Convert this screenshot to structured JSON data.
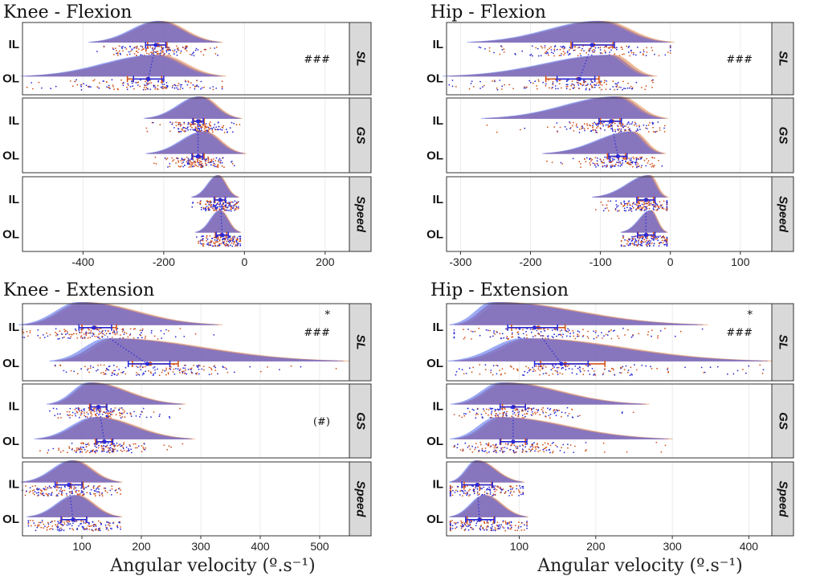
{
  "x_axis_label": "Angular velocity (º.s⁻¹)",
  "colors": {
    "IL_density": "#7a8ef0",
    "OL_density": "#e8a070",
    "overlap": "#7a5aa8",
    "IL_points": "#2b2bd6",
    "OL_points": "#d2531a",
    "strip_fill": "#d9d9d9",
    "grid": "#ebebeb"
  },
  "chart_data": [
    {
      "id": "knee-flexion",
      "title": "Knee - Flexion",
      "type": "raincloud",
      "xlim": [
        -550,
        260
      ],
      "xticks": [
        -400,
        -200,
        0,
        200
      ],
      "xtick_labels": [
        "-400",
        "-200",
        "0",
        "200"
      ],
      "facets": [
        {
          "label": "SL",
          "annotation": [
            "###"
          ],
          "rows": [
            {
              "label": "IL",
              "min": -380,
              "max": -60,
              "peak": -210,
              "mean": -220,
              "ci": [
                -245,
                -195
              ],
              "mean_ol": -215,
              "ci_ol": [
                -240,
                -192
              ]
            },
            {
              "label": "OL",
              "min": -545,
              "max": -55,
              "peak": -215,
              "mean": -238,
              "ci": [
                -275,
                -200
              ],
              "mean_ol": -240,
              "ci_ol": [
                -290,
                -205
              ]
            }
          ]
        },
        {
          "label": "GS",
          "annotation": [],
          "rows": [
            {
              "label": "IL",
              "min": -245,
              "max": -10,
              "peak": -110,
              "mean": -115,
              "ci": [
                -128,
                -102
              ],
              "mean_ol": -112,
              "ci_ol": [
                -126,
                -100
              ]
            },
            {
              "label": "OL",
              "min": -240,
              "max": 0,
              "peak": -100,
              "mean": -115,
              "ci": [
                -130,
                -103
              ],
              "mean_ol": -113,
              "ci_ol": [
                -128,
                -100
              ]
            }
          ]
        },
        {
          "label": "Speed",
          "annotation": [],
          "rows": [
            {
              "label": "IL",
              "min": -130,
              "max": -15,
              "peak": -65,
              "mean": -60,
              "ci": [
                -75,
                -47
              ],
              "mean_ol": -60,
              "ci_ol": [
                -73,
                -48
              ]
            },
            {
              "label": "OL",
              "min": -120,
              "max": -10,
              "peak": -60,
              "mean": -55,
              "ci": [
                -70,
                -40
              ],
              "mean_ol": -57,
              "ci_ol": [
                -72,
                -44
              ]
            }
          ]
        }
      ]
    },
    {
      "id": "hip-flexion",
      "title": "Hip - Flexion",
      "type": "raincloud",
      "xlim": [
        -320,
        145
      ],
      "xticks": [
        -300,
        -200,
        -100,
        0,
        100
      ],
      "xtick_labels": [
        "-300",
        "-200",
        "-100",
        "0",
        "100"
      ],
      "facets": [
        {
          "label": "SL",
          "annotation": [
            "###"
          ],
          "rows": [
            {
              "label": "IL",
              "min": -285,
              "max": 0,
              "peak": -100,
              "mean": -112,
              "ci": [
                -140,
                -80
              ],
              "mean_ol": -110,
              "ci_ol": [
                -142,
                -82
              ]
            },
            {
              "label": "OL",
              "min": -320,
              "max": -25,
              "peak": -85,
              "mean": -130,
              "ci": [
                -162,
                -108
              ],
              "mean_ol": -132,
              "ci_ol": [
                -178,
                -102
              ]
            }
          ]
        },
        {
          "label": "GS",
          "annotation": [],
          "rows": [
            {
              "label": "IL",
              "min": -265,
              "max": -8,
              "peak": -75,
              "mean": -85,
              "ci": [
                -102,
                -70
              ],
              "mean_ol": -83,
              "ci_ol": [
                -100,
                -72
              ]
            },
            {
              "label": "OL",
              "min": -180,
              "max": -10,
              "peak": -55,
              "mean": -75,
              "ci": [
                -88,
                -62
              ],
              "mean_ol": -75,
              "ci_ol": [
                -90,
                -64
              ]
            }
          ]
        },
        {
          "label": "Speed",
          "annotation": [],
          "rows": [
            {
              "label": "IL",
              "min": -110,
              "max": -5,
              "peak": -30,
              "mean": -35,
              "ci": [
                -48,
                -22
              ],
              "mean_ol": -34,
              "ci_ol": [
                -46,
                -24
              ]
            },
            {
              "label": "OL",
              "min": -70,
              "max": -5,
              "peak": -28,
              "mean": -35,
              "ci": [
                -47,
                -22
              ],
              "mean_ol": -34,
              "ci_ol": [
                -46,
                -24
              ]
            }
          ]
        }
      ]
    },
    {
      "id": "knee-extension",
      "title": "Knee - Extension",
      "type": "raincloud",
      "xlim": [
        0,
        550
      ],
      "xticks": [
        100,
        200,
        300,
        400,
        500
      ],
      "xtick_labels": [
        "100",
        "200",
        "300",
        "400",
        "500"
      ],
      "facets": [
        {
          "label": "SL",
          "annotation": [
            "*",
            "###"
          ],
          "rows": [
            {
              "label": "IL",
              "min": 0,
              "max": 330,
              "peak": 100,
              "mean": 120,
              "ci": [
                95,
                150
              ],
              "mean_ol": 122,
              "ci_ol": [
                100,
                158
              ]
            },
            {
              "label": "OL",
              "min": 55,
              "max": 540,
              "peak": 150,
              "mean": 210,
              "ci": [
                178,
                248
              ],
              "mean_ol": 215,
              "ci_ol": [
                185,
                262
              ]
            }
          ]
        },
        {
          "label": "GS",
          "annotation": [
            "(#)"
          ],
          "rows": [
            {
              "label": "IL",
              "min": 45,
              "max": 270,
              "peak": 115,
              "mean": 128,
              "ci": [
                115,
                142
              ],
              "mean_ol": 127,
              "ci_ol": [
                113,
                141
              ]
            },
            {
              "label": "OL",
              "min": 25,
              "max": 285,
              "peak": 125,
              "mean": 138,
              "ci": [
                125,
                152
              ],
              "mean_ol": 137,
              "ci_ol": [
                123,
                150
              ]
            }
          ]
        },
        {
          "label": "Speed",
          "annotation": [],
          "rows": [
            {
              "label": "IL",
              "min": 0,
              "max": 165,
              "peak": 85,
              "mean": 78,
              "ci": [
                55,
                100
              ],
              "mean_ol": 80,
              "ci_ol": [
                58,
                102
              ]
            },
            {
              "label": "OL",
              "min": 10,
              "max": 165,
              "peak": 90,
              "mean": 85,
              "ci": [
                65,
                108
              ],
              "mean_ol": 86,
              "ci_ol": [
                66,
                108
              ]
            }
          ]
        }
      ]
    },
    {
      "id": "hip-extension",
      "title": "Hip - Extension",
      "type": "raincloud",
      "xlim": [
        5,
        430
      ],
      "xticks": [
        100,
        200,
        300,
        400
      ],
      "xtick_labels": [
        "100",
        "200",
        "300",
        "400"
      ],
      "facets": [
        {
          "label": "SL",
          "annotation": [
            "*",
            "###"
          ],
          "rows": [
            {
              "label": "IL",
              "min": 15,
              "max": 340,
              "peak": 70,
              "mean": 120,
              "ci": [
                85,
                150
              ],
              "mean_ol": 125,
              "ci_ol": [
                90,
                160
              ]
            },
            {
              "label": "OL",
              "min": 15,
              "max": 425,
              "peak": 110,
              "mean": 155,
              "ci": [
                120,
                190
              ],
              "mean_ol": 160,
              "ci_ol": [
                128,
                212
              ]
            }
          ]
        },
        {
          "label": "GS",
          "annotation": [],
          "rows": [
            {
              "label": "IL",
              "min": 15,
              "max": 265,
              "peak": 80,
              "mean": 92,
              "ci": [
                75,
                108
              ],
              "mean_ol": 93,
              "ci_ol": [
                78,
                108
              ]
            },
            {
              "label": "OL",
              "min": 15,
              "max": 295,
              "peak": 75,
              "mean": 92,
              "ci": [
                75,
                110
              ],
              "mean_ol": 92,
              "ci_ol": [
                76,
                108
              ]
            }
          ]
        },
        {
          "label": "Speed",
          "annotation": [],
          "rows": [
            {
              "label": "IL",
              "min": 10,
              "max": 105,
              "peak": 45,
              "mean": 45,
              "ci": [
                25,
                65
              ],
              "mean_ol": 46,
              "ci_ol": [
                28,
                64
              ]
            },
            {
              "label": "OL",
              "min": 10,
              "max": 110,
              "peak": 55,
              "mean": 48,
              "ci": [
                30,
                68
              ],
              "mean_ol": 49,
              "ci_ol": [
                32,
                67
              ]
            }
          ]
        }
      ]
    }
  ]
}
